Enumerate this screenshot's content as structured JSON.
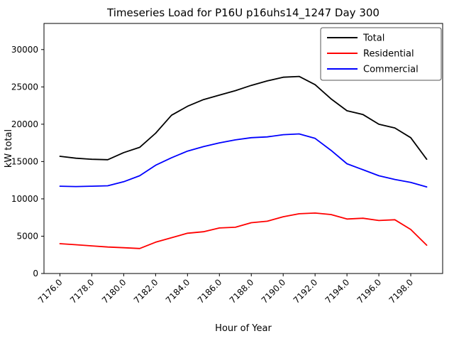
{
  "figure": {
    "background": "#ffffff"
  },
  "chart_data": {
    "type": "line",
    "title": "Timeseries Load for P16U p16uhs14_1247  Day 300",
    "xlabel": "Hour of Year",
    "ylabel": "kW total",
    "xlim": [
      7175.0,
      7200.0
    ],
    "ylim": [
      0,
      33500
    ],
    "grid": false,
    "legend_position": "upper right",
    "xticks": {
      "positions": [
        7176,
        7178,
        7180,
        7182,
        7184,
        7186,
        7188,
        7190,
        7192,
        7194,
        7196,
        7198
      ],
      "labels": [
        "7176.0",
        "7178.0",
        "7180.0",
        "7182.0",
        "7184.0",
        "7186.0",
        "7188.0",
        "7190.0",
        "7192.0",
        "7194.0",
        "7196.0",
        "7198.0"
      ]
    },
    "yticks": {
      "positions": [
        0,
        5000,
        10000,
        15000,
        20000,
        25000,
        30000
      ],
      "labels": [
        "0",
        "5000",
        "10000",
        "15000",
        "20000",
        "25000",
        "30000"
      ]
    },
    "x": [
      7176,
      7177,
      7178,
      7179,
      7180,
      7181,
      7182,
      7183,
      7184,
      7185,
      7186,
      7187,
      7188,
      7189,
      7190,
      7191,
      7192,
      7193,
      7194,
      7195,
      7196,
      7197,
      7198,
      7199
    ],
    "series": [
      {
        "name": "Total",
        "color": "#000000",
        "values": [
          15700,
          15450,
          15300,
          15250,
          16200,
          16900,
          18800,
          21200,
          22400,
          23300,
          23900,
          24500,
          25200,
          25800,
          26300,
          26400,
          25300,
          23400,
          21800,
          21300,
          20000,
          19500,
          18200,
          15300
        ]
      },
      {
        "name": "Residential",
        "color": "#ff0000",
        "values": [
          4000,
          3850,
          3700,
          3550,
          3450,
          3350,
          4200,
          4800,
          5400,
          5600,
          6100,
          6200,
          6800,
          7000,
          7600,
          8000,
          8100,
          7900,
          7300,
          7400,
          7100,
          7200,
          5900,
          3800
        ]
      },
      {
        "name": "Commercial",
        "color": "#0000ff",
        "values": [
          11700,
          11650,
          11700,
          11750,
          12300,
          13100,
          14500,
          15500,
          16400,
          17000,
          17500,
          17900,
          18200,
          18300,
          18600,
          18700,
          18100,
          16500,
          14700,
          13900,
          13100,
          12600,
          12200,
          11600
        ]
      }
    ]
  }
}
